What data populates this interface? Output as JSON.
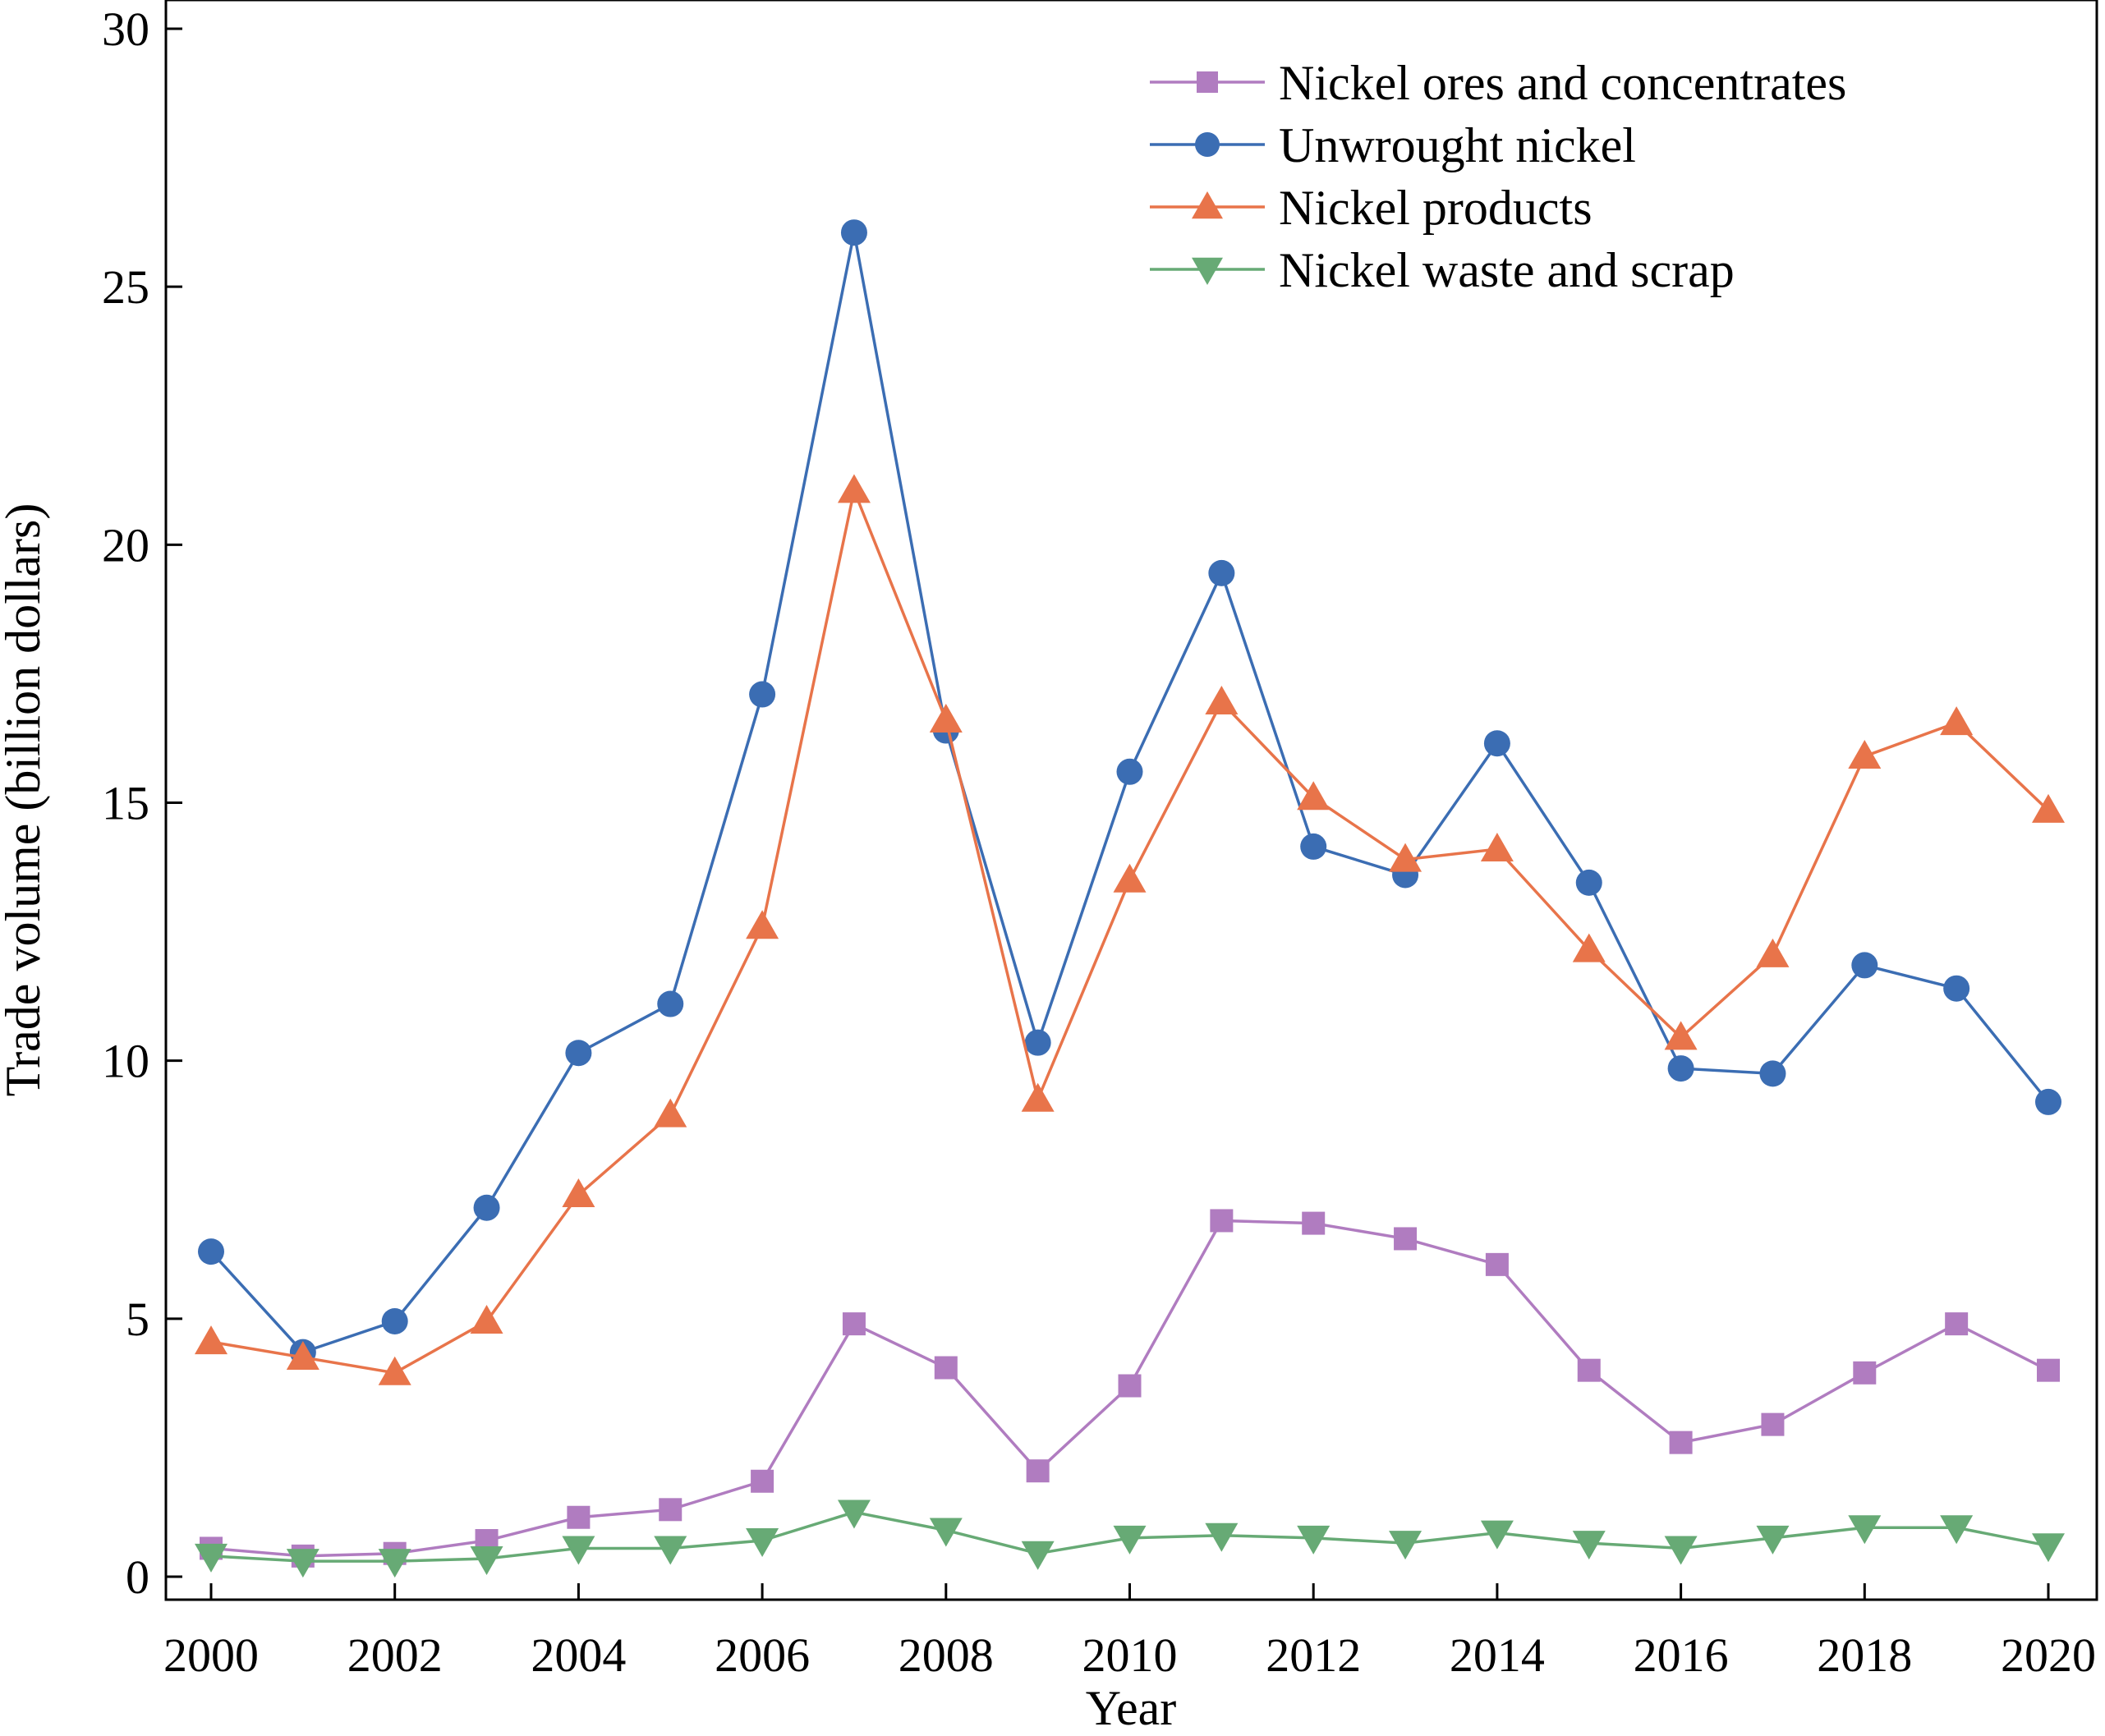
{
  "chart_data": {
    "type": "line",
    "title": "",
    "xlabel": "Year",
    "ylabel": "Trade volume (billion dollars)",
    "xlim": [
      1999.8,
      2020.5
    ],
    "ylim": [
      -0.5,
      30.4
    ],
    "x_ticks": [
      2000,
      2002,
      2004,
      2006,
      2008,
      2010,
      2012,
      2014,
      2016,
      2018,
      2020
    ],
    "y_ticks": [
      0,
      5,
      10,
      15,
      20,
      25,
      30
    ],
    "grid": false,
    "legend_position": "top-right",
    "x": [
      2000,
      2001,
      2002,
      2003,
      2004,
      2005,
      2006,
      2007,
      2008,
      2009,
      2010,
      2011,
      2012,
      2013,
      2014,
      2015,
      2016,
      2017,
      2018,
      2019,
      2020
    ],
    "series": [
      {
        "name": "Nickel ores and concentrates",
        "color": "#b07cc0",
        "marker": "square",
        "values": [
          0.55,
          0.4,
          0.45,
          0.7,
          1.15,
          1.3,
          1.85,
          4.9,
          4.05,
          2.05,
          3.7,
          6.9,
          6.85,
          6.55,
          6.05,
          4.0,
          2.6,
          2.95,
          3.95,
          4.9,
          4.0
        ]
      },
      {
        "name": "Unwrought nickel",
        "color": "#3b6db3",
        "marker": "circle",
        "values": [
          6.3,
          4.35,
          4.95,
          7.15,
          10.15,
          11.1,
          17.1,
          26.05,
          16.4,
          10.35,
          15.6,
          19.45,
          14.15,
          13.6,
          16.15,
          13.45,
          9.85,
          9.75,
          11.85,
          11.4,
          9.2
        ]
      },
      {
        "name": "Nickel products",
        "color": "#e8744a",
        "marker": "triangle-up",
        "values": [
          4.55,
          4.25,
          3.95,
          4.95,
          7.4,
          8.95,
          12.6,
          21.05,
          16.6,
          9.25,
          13.5,
          16.95,
          15.1,
          13.9,
          14.1,
          12.15,
          10.45,
          12.05,
          15.9,
          16.55,
          14.85
        ]
      },
      {
        "name": "Nickel waste and scrap",
        "color": "#67aa75",
        "marker": "triangle-down",
        "values": [
          0.4,
          0.3,
          0.3,
          0.35,
          0.55,
          0.55,
          0.7,
          1.25,
          0.9,
          0.45,
          0.75,
          0.8,
          0.75,
          0.65,
          0.85,
          0.65,
          0.55,
          0.75,
          0.95,
          0.95,
          0.6
        ]
      }
    ]
  }
}
